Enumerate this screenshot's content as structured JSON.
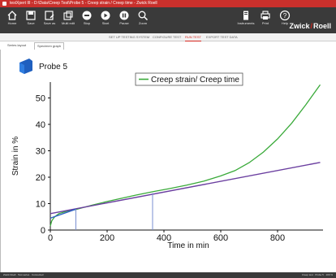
{
  "window": {
    "title": "testXpert III - D:\\Data\\Creep Test\\Probe 5 - Creep strain / Creep time - Zwick Roell"
  },
  "toolbar": {
    "items": [
      {
        "label": "Home",
        "icon": "home-icon"
      },
      {
        "label": "Save",
        "icon": "save-icon"
      },
      {
        "label": "Save as",
        "icon": "save-as-icon"
      },
      {
        "label": "Multi edit",
        "icon": "multi-edit-icon"
      },
      {
        "label": "Stop",
        "icon": "stop-icon"
      },
      {
        "label": "Start",
        "icon": "start-icon"
      },
      {
        "label": "Pause",
        "icon": "pause-icon"
      },
      {
        "label": "Zoom",
        "icon": "zoom-icon"
      }
    ],
    "right_items": [
      {
        "label": "Instruments",
        "icon": "instruments-icon"
      },
      {
        "label": "Print",
        "icon": "print-icon"
      },
      {
        "label": "Help",
        "icon": "help-icon"
      }
    ],
    "brand": {
      "left": "Zwick",
      "right": "Roell",
      "accent": "#d6261e"
    }
  },
  "tabs": [
    {
      "label": "SET UP TESTING SYSTEM",
      "active": false
    },
    {
      "label": "CONFIGURE TEST",
      "active": false
    },
    {
      "label": "RUN TEST",
      "active": true
    },
    {
      "label": "EXPORT TEST DATA",
      "active": false
    }
  ],
  "subtabs": [
    {
      "label": "Series layout",
      "active": false
    },
    {
      "label": "Specimen graph",
      "active": true
    }
  ],
  "status": {
    "left": "Zwick Roell · Test series · Connected",
    "right": "Creep test · Probe 5 · 100 %"
  },
  "chart_data": {
    "type": "line",
    "title": "Probe 5",
    "xlabel": "Time in min",
    "ylabel": "Strain in %",
    "xlim": [
      0,
      960
    ],
    "ylim": [
      0,
      56
    ],
    "xticks": [
      0,
      200,
      400,
      600,
      800
    ],
    "yticks": [
      0,
      10,
      20,
      30,
      40,
      50
    ],
    "grid": false,
    "legend": {
      "entries": [
        "Creep strain/ Creep time"
      ],
      "position": "top"
    },
    "series": [
      {
        "name": "Creep strain/ Creep time",
        "color": "#3aaa3a",
        "x": [
          0,
          5,
          15,
          30,
          60,
          90,
          150,
          200,
          250,
          300,
          360,
          420,
          480,
          540,
          600,
          650,
          700,
          750,
          800,
          850,
          900,
          950
        ],
        "y": [
          1.5,
          3.5,
          5,
          6.2,
          7.2,
          7.8,
          9.5,
          10.8,
          12,
          13.2,
          14.5,
          15.7,
          17,
          18.5,
          20.5,
          22.5,
          25.5,
          29.5,
          34.5,
          40.5,
          47.5,
          55
        ]
      },
      {
        "color": "#6b3fa0",
        "x": [
          0,
          950
        ],
        "y": [
          6.2,
          25.6
        ]
      },
      {
        "color": "#2d5fc4",
        "x": [
          0,
          90
        ],
        "y": [
          4.5,
          7.9
        ]
      }
    ],
    "markers": [
      {
        "x": 90,
        "y": 7.9,
        "color": "#7a8fd0"
      },
      {
        "x": 360,
        "y": 14.0,
        "color": "#7a8fd0"
      }
    ]
  }
}
